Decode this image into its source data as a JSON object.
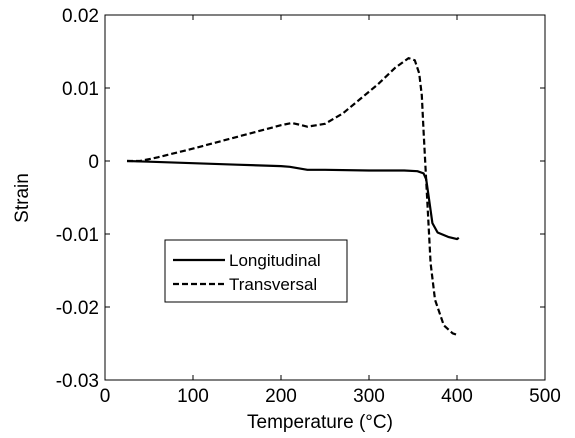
{
  "chart_data": {
    "type": "line",
    "title": "",
    "xlabel": "Temperature (°C)",
    "ylabel": "Strain",
    "xlim": [
      0,
      500
    ],
    "ylim": [
      -0.03,
      0.02
    ],
    "xticks": [
      0,
      100,
      200,
      300,
      400,
      500
    ],
    "yticks": [
      -0.03,
      -0.02,
      -0.01,
      0,
      0.01,
      0.02
    ],
    "xtick_labels": [
      "0",
      "100",
      "200",
      "300",
      "400",
      "500"
    ],
    "ytick_labels": [
      "-0.03",
      "-0.02",
      "-0.01",
      "0",
      "0.01",
      "0.02"
    ],
    "grid": false,
    "legend_position": "lower-left",
    "series": [
      {
        "name": "Longitudinal",
        "style": "solid",
        "color": "#000000",
        "x": [
          25,
          50,
          100,
          150,
          200,
          210,
          230,
          250,
          300,
          340,
          355,
          362,
          365,
          368,
          372,
          378,
          390,
          400,
          402
        ],
        "y": [
          0.0,
          -0.0001,
          -0.0003,
          -0.0005,
          -0.0007,
          -0.0008,
          -0.0012,
          -0.0012,
          -0.0013,
          -0.0013,
          -0.0014,
          -0.0017,
          -0.0025,
          -0.005,
          -0.0085,
          -0.0098,
          -0.0104,
          -0.0107,
          -0.0105
        ]
      },
      {
        "name": "Transversal",
        "style": "dashed",
        "color": "#000000",
        "x": [
          25,
          40,
          60,
          100,
          150,
          200,
          212,
          220,
          230,
          250,
          270,
          290,
          310,
          330,
          345,
          352,
          357,
          360,
          362,
          366,
          370,
          375,
          385,
          395,
          402
        ],
        "y": [
          0.0,
          0.0,
          0.0005,
          0.0017,
          0.0033,
          0.0049,
          0.0052,
          0.005,
          0.0047,
          0.0051,
          0.0065,
          0.0085,
          0.0105,
          0.0128,
          0.0141,
          0.0138,
          0.012,
          0.009,
          0.004,
          -0.005,
          -0.014,
          -0.019,
          -0.0225,
          -0.0236,
          -0.0239
        ]
      }
    ]
  }
}
